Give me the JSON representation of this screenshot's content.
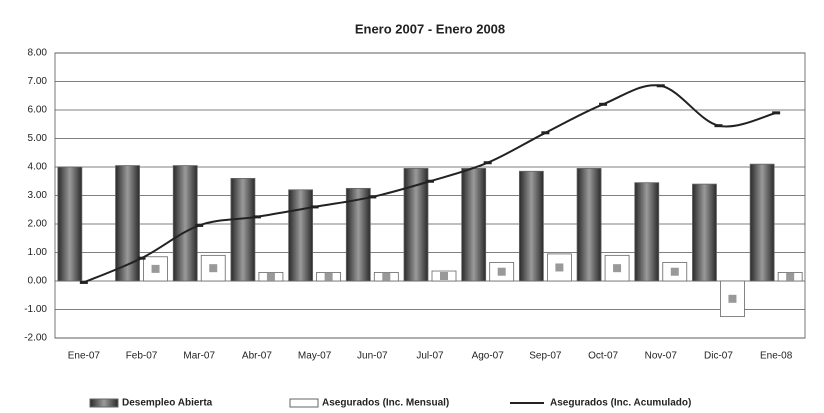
{
  "chart_data": {
    "type": "bar-line",
    "title": "Enero 2007 - Enero 2008",
    "categories": [
      "Ene-07",
      "Feb-07",
      "Mar-07",
      "Abr-07",
      "May-07",
      "Jun-07",
      "Jul-07",
      "Ago-07",
      "Sep-07",
      "Oct-07",
      "Nov-07",
      "Dic-07",
      "Ene-08"
    ],
    "series": [
      {
        "name": "Desempleo Abierta",
        "type": "bar",
        "color": "#555555",
        "values": [
          4.0,
          4.05,
          4.05,
          3.6,
          3.2,
          3.25,
          3.95,
          3.95,
          3.85,
          3.95,
          3.45,
          3.4,
          4.1
        ]
      },
      {
        "name": "Asegurados (Inc. Mensual)",
        "type": "bar",
        "color": "#ffffff",
        "values": [
          0,
          0.85,
          0.9,
          0.3,
          0.3,
          0.3,
          0.35,
          0.65,
          0.95,
          0.9,
          0.65,
          -1.25,
          0.3
        ]
      },
      {
        "name": "Asegurados (Inc. Acumulado)",
        "type": "line",
        "color": "#222222",
        "values": [
          -0.05,
          0.8,
          1.95,
          2.25,
          2.6,
          2.95,
          3.5,
          4.15,
          5.2,
          6.2,
          6.85,
          5.45,
          5.9
        ]
      }
    ],
    "ylim": [
      -2,
      8
    ],
    "yticks": [
      {
        "value": -2,
        "label": "-2.00"
      },
      {
        "value": -1,
        "label": "-1.00"
      },
      {
        "value": 0,
        "label": "0.00"
      },
      {
        "value": 1,
        "label": "1.00"
      },
      {
        "value": 2,
        "label": "2.00"
      },
      {
        "value": 3,
        "label": "3.00"
      },
      {
        "value": 4,
        "label": "4.00"
      },
      {
        "value": 5,
        "label": "5.00"
      },
      {
        "value": 6,
        "label": "6.00"
      },
      {
        "value": 7,
        "label": "7.00"
      },
      {
        "value": 8,
        "label": "8.00"
      }
    ],
    "grid": true,
    "legend": "bottom"
  }
}
